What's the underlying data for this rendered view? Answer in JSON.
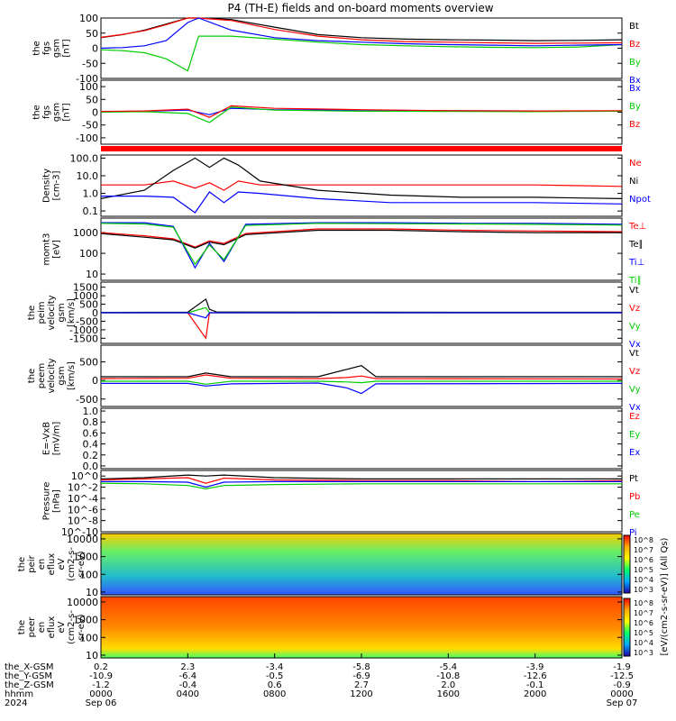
{
  "figure": {
    "title": "P4 (TH-E) fields and on-board moments overview"
  },
  "chart_data": [
    {
      "type": "line",
      "panel": "fgs_gsm_1",
      "ylabel": [
        "the",
        "fgs",
        "gsm",
        "[nT]"
      ],
      "ylim": [
        -100,
        100
      ],
      "yticks": [
        100,
        50,
        0,
        -50,
        -100
      ],
      "series": [
        {
          "name": "Bt",
          "color": "#000000",
          "x": [
            0,
            60,
            120,
            180,
            240,
            270,
            360,
            480,
            600,
            720,
            840,
            960,
            1080,
            1200,
            1320,
            1440
          ],
          "values": [
            35,
            45,
            60,
            80,
            100,
            100,
            95,
            70,
            45,
            35,
            30,
            28,
            27,
            25,
            26,
            28
          ]
        },
        {
          "name": "Bz",
          "color": "#ff0000",
          "x": [
            0,
            60,
            120,
            180,
            240,
            270,
            360,
            480,
            600,
            720,
            840,
            960,
            1080,
            1200,
            1320,
            1440
          ],
          "values": [
            36,
            46,
            58,
            78,
            100,
            100,
            92,
            62,
            40,
            28,
            22,
            20,
            18,
            16,
            17,
            18
          ]
        },
        {
          "name": "By",
          "color": "#00cc00",
          "x": [
            0,
            60,
            120,
            180,
            240,
            270,
            360,
            480,
            600,
            720,
            840,
            960,
            1080,
            1200,
            1320,
            1440
          ],
          "values": [
            -5,
            -8,
            -15,
            -35,
            -75,
            40,
            40,
            30,
            20,
            12,
            8,
            5,
            3,
            2,
            4,
            12
          ]
        },
        {
          "name": "Bx",
          "color": "#0000ff",
          "x": [
            0,
            60,
            120,
            180,
            240,
            270,
            360,
            480,
            600,
            720,
            840,
            960,
            1080,
            1200,
            1320,
            1440
          ],
          "values": [
            0,
            2,
            8,
            25,
            85,
            100,
            60,
            35,
            25,
            20,
            15,
            12,
            10,
            8,
            10,
            12
          ]
        }
      ]
    },
    {
      "type": "line",
      "panel": "fgs_gsm_2",
      "ylabel": [
        "the",
        "fgs",
        "gsm",
        "[nT]"
      ],
      "ylim": [
        -125,
        125
      ],
      "yticks": [
        100,
        50,
        0,
        -50,
        -100
      ],
      "series": [
        {
          "name": "Bx",
          "color": "#0000ff",
          "x": [
            0,
            120,
            240,
            300,
            360,
            480,
            720,
            960,
            1200,
            1440
          ],
          "values": [
            2,
            4,
            8,
            -10,
            15,
            10,
            8,
            6,
            5,
            5
          ]
        },
        {
          "name": "By",
          "color": "#00cc00",
          "x": [
            0,
            120,
            240,
            300,
            360,
            480,
            720,
            960,
            1200,
            1440
          ],
          "values": [
            0,
            2,
            -5,
            -40,
            20,
            8,
            4,
            3,
            2,
            4
          ]
        },
        {
          "name": "Bz",
          "color": "#ff0000",
          "x": [
            0,
            120,
            240,
            300,
            360,
            480,
            720,
            960,
            1200,
            1440
          ],
          "values": [
            3,
            5,
            12,
            -20,
            25,
            15,
            10,
            6,
            5,
            6
          ]
        }
      ]
    },
    {
      "type": "line",
      "panel": "density",
      "ylabel": [
        "Density",
        "[cm-3]"
      ],
      "yscale": "log",
      "ylim": [
        0.05,
        150
      ],
      "yticklabels": [
        "100.0",
        "10.0",
        "1.0",
        "0.1"
      ],
      "series": [
        {
          "name": "Ne",
          "color": "#ff0000",
          "x": [
            0,
            120,
            200,
            260,
            300,
            340,
            380,
            440,
            600,
            800,
            1000,
            1200,
            1440
          ],
          "values": [
            3,
            3,
            5,
            2,
            4,
            1.5,
            5,
            3,
            3,
            3,
            3,
            3,
            2.5
          ]
        },
        {
          "name": "Ni",
          "color": "#000000",
          "x": [
            0,
            120,
            200,
            260,
            300,
            340,
            380,
            440,
            600,
            800,
            1000,
            1200,
            1440
          ],
          "values": [
            0.5,
            1.5,
            20,
            100,
            30,
            100,
            40,
            5,
            1.5,
            0.8,
            0.6,
            0.6,
            0.5
          ]
        },
        {
          "name": "Npot",
          "color": "#0000ff",
          "x": [
            0,
            120,
            200,
            260,
            300,
            340,
            380,
            440,
            600,
            800,
            1000,
            1200,
            1440
          ],
          "values": [
            0.7,
            0.7,
            0.6,
            0.08,
            1.2,
            0.3,
            1.2,
            1.0,
            0.5,
            0.3,
            0.3,
            0.3,
            0.25
          ]
        }
      ]
    },
    {
      "type": "line",
      "panel": "mom_t3",
      "ylabel": [
        "momt3",
        "[eV]"
      ],
      "yscale": "log",
      "ylim": [
        5,
        5000
      ],
      "yticklabels": [
        "1000",
        "100",
        "10"
      ],
      "series": [
        {
          "name": "Te⊥",
          "color": "#ff0000",
          "x": [
            0,
            120,
            200,
            260,
            300,
            340,
            400,
            600,
            800,
            1000,
            1200,
            1440
          ],
          "values": [
            1000,
            700,
            500,
            200,
            400,
            300,
            900,
            1500,
            1500,
            1300,
            1200,
            1100
          ]
        },
        {
          "name": "Te∥",
          "color": "#000000",
          "x": [
            0,
            120,
            200,
            260,
            300,
            340,
            400,
            600,
            800,
            1000,
            1200,
            1440
          ],
          "values": [
            900,
            600,
            450,
            180,
            350,
            260,
            800,
            1300,
            1300,
            1100,
            1000,
            1000
          ]
        },
        {
          "name": "Ti⊥",
          "color": "#0000ff",
          "x": [
            0,
            120,
            200,
            260,
            300,
            340,
            400,
            600,
            800,
            1000,
            1200,
            1440
          ],
          "values": [
            3000,
            3000,
            2000,
            20,
            300,
            40,
            2500,
            3000,
            3000,
            2800,
            2800,
            2500
          ]
        },
        {
          "name": "Ti∥",
          "color": "#00cc00",
          "x": [
            0,
            120,
            200,
            260,
            300,
            340,
            400,
            600,
            800,
            1000,
            1200,
            1440
          ],
          "values": [
            2800,
            2600,
            1800,
            30,
            250,
            50,
            2200,
            2800,
            2700,
            2600,
            2500,
            2300
          ]
        }
      ]
    },
    {
      "type": "line",
      "panel": "peir_velocity",
      "ylabel": [
        "the",
        "peim",
        "velocity",
        "gsm",
        "[km/s]"
      ],
      "ylim": [
        -1800,
        1800
      ],
      "yticks": [
        1500,
        1000,
        500,
        0,
        -500,
        -1000,
        -1500
      ],
      "series": [
        {
          "name": "Vt",
          "color": "#000000",
          "x": [
            0,
            240,
            290,
            300,
            320,
            700,
            1440
          ],
          "values": [
            20,
            30,
            800,
            200,
            40,
            30,
            25
          ]
        },
        {
          "name": "Vz",
          "color": "#ff0000",
          "x": [
            0,
            240,
            290,
            300,
            320,
            700,
            1440
          ],
          "values": [
            0,
            0,
            -1500,
            0,
            0,
            0,
            0
          ]
        },
        {
          "name": "Vy",
          "color": "#00cc00",
          "x": [
            0,
            240,
            290,
            300,
            320,
            700,
            1440
          ],
          "values": [
            0,
            0,
            300,
            0,
            0,
            0,
            0
          ]
        },
        {
          "name": "Vx",
          "color": "#0000ff",
          "x": [
            0,
            240,
            290,
            300,
            320,
            700,
            1440
          ],
          "values": [
            0,
            0,
            -300,
            0,
            0,
            0,
            0
          ]
        }
      ]
    },
    {
      "type": "line",
      "panel": "peem_velocity",
      "ylabel": [
        "the",
        "peem",
        "velocity",
        "gsm",
        "[km/s]"
      ],
      "ylim": [
        -700,
        950
      ],
      "yticks": [
        500,
        0,
        -500
      ],
      "series": [
        {
          "name": "Vt",
          "color": "#000000",
          "x": [
            0,
            240,
            290,
            360,
            600,
            680,
            720,
            760,
            1440
          ],
          "values": [
            100,
            100,
            200,
            100,
            100,
            300,
            400,
            100,
            100
          ]
        },
        {
          "name": "Vz",
          "color": "#ff0000",
          "x": [
            0,
            240,
            290,
            360,
            600,
            680,
            720,
            760,
            1440
          ],
          "values": [
            50,
            60,
            150,
            60,
            50,
            80,
            120,
            50,
            40
          ]
        },
        {
          "name": "Vy",
          "color": "#00cc00",
          "x": [
            0,
            240,
            290,
            360,
            600,
            680,
            720,
            760,
            1440
          ],
          "values": [
            -20,
            -20,
            -100,
            -20,
            -20,
            -40,
            -60,
            -20,
            -20
          ]
        },
        {
          "name": "Vx",
          "color": "#0000ff",
          "x": [
            0,
            240,
            290,
            360,
            600,
            680,
            720,
            760,
            1440
          ],
          "values": [
            -80,
            -80,
            -150,
            -90,
            -70,
            -200,
            -350,
            -90,
            -80
          ]
        }
      ]
    },
    {
      "type": "line",
      "panel": "e_vxb",
      "ylabel": [
        "E=-VxB",
        "[mV/m]"
      ],
      "ylim": [
        -0.05,
        1.05
      ],
      "yticklabels": [
        "1.0",
        "0.8",
        "0.6",
        "0.4",
        "0.2",
        "0.0"
      ],
      "series": [
        {
          "name": "Ez",
          "color": "#ff0000",
          "x": [],
          "values": []
        },
        {
          "name": "Ey",
          "color": "#00cc00",
          "x": [],
          "values": []
        },
        {
          "name": "Ex",
          "color": "#0000ff",
          "x": [],
          "values": []
        }
      ]
    },
    {
      "type": "line",
      "panel": "pressure",
      "ylabel": [
        "Pressure",
        "[nPa]"
      ],
      "yscale": "log",
      "ylim": [
        1e-10,
        10
      ],
      "yticklabels": [
        "10^0",
        "10^-2",
        "10^-4",
        "10^-6",
        "10^-8",
        "10^-10"
      ],
      "series": [
        {
          "name": "Pt",
          "color": "#000000",
          "x": [
            0,
            120,
            240,
            290,
            340,
            480,
            720,
            960,
            1200,
            1440
          ],
          "values": [
            0.3,
            0.5,
            1.5,
            1.0,
            1.5,
            0.5,
            0.3,
            0.3,
            0.3,
            0.3
          ]
        },
        {
          "name": "Pb",
          "color": "#ff0000",
          "x": [
            0,
            120,
            240,
            290,
            340,
            480,
            720,
            960,
            1200,
            1440
          ],
          "values": [
            0.2,
            0.3,
            0.5,
            0.05,
            0.4,
            0.2,
            0.15,
            0.15,
            0.1,
            0.15
          ]
        },
        {
          "name": "Pe",
          "color": "#00cc00",
          "x": [
            0,
            120,
            240,
            290,
            340,
            480,
            720,
            960,
            1200,
            1440
          ],
          "values": [
            0.05,
            0.04,
            0.02,
            0.005,
            0.02,
            0.03,
            0.04,
            0.04,
            0.04,
            0.04
          ]
        },
        {
          "name": "Pi",
          "color": "#0000ff",
          "x": [
            0,
            120,
            240,
            290,
            340,
            480,
            720,
            960,
            1200,
            1440
          ],
          "values": [
            0.1,
            0.1,
            0.08,
            0.01,
            0.08,
            0.1,
            0.1,
            0.1,
            0.1,
            0.1
          ]
        }
      ]
    },
    {
      "type": "heatmap",
      "panel": "peir_eflux",
      "ylabel": [
        "the",
        "peir",
        "en",
        "eflux",
        "eV",
        "(cm2-s-",
        "sr-eV)"
      ],
      "yscale": "log",
      "ylim": [
        7,
        20000
      ],
      "yticklabels": [
        "10000",
        "1000",
        "100",
        "10"
      ]
    },
    {
      "type": "heatmap",
      "panel": "peer_eflux",
      "ylabel": [
        "the",
        "peer",
        "en",
        "eflux",
        "eV",
        "(cm2-s-",
        "sr-eV)"
      ],
      "yscale": "log",
      "ylim": [
        7,
        20000
      ],
      "yticklabels": [
        "10000",
        "1000",
        "100",
        "10"
      ]
    }
  ],
  "colorbar": {
    "label": "[eV/(cm2-s-sr-eV)] (All Qs)",
    "top_ticks": [
      "10^8",
      "10^7",
      "10^6",
      "10^5",
      "10^4",
      "10^3"
    ],
    "bottom_ticks": [
      "10^8",
      "10^7",
      "10^6",
      "10^5",
      "10^4",
      "10^3"
    ]
  },
  "x_axis": {
    "range_minutes": [
      0,
      1440
    ],
    "tick_minutes": [
      0,
      240,
      480,
      720,
      960,
      1200,
      1440
    ],
    "row_labels": [
      "the_X-GSM",
      "the_Y-GSM",
      "the_Z-GSM",
      "hhmm",
      "2024"
    ],
    "rows": [
      [
        "0.2",
        "2.3",
        "-3.4",
        "-5.8",
        "-5.4",
        "-3.9",
        "-1.9"
      ],
      [
        "-10.9",
        "-6.4",
        "-0.5",
        "-6.9",
        "-10.8",
        "-12.6",
        "-12.5"
      ],
      [
        "-1.2",
        "-0.4",
        "0.6",
        "2.7",
        "2.0",
        "-0.1",
        "-0.9"
      ],
      [
        "0000",
        "0400",
        "0800",
        "1200",
        "1600",
        "2000",
        "0000"
      ],
      [
        "Sep 06",
        "",
        "",
        "",
        "",
        "",
        "Sep 07"
      ]
    ]
  }
}
